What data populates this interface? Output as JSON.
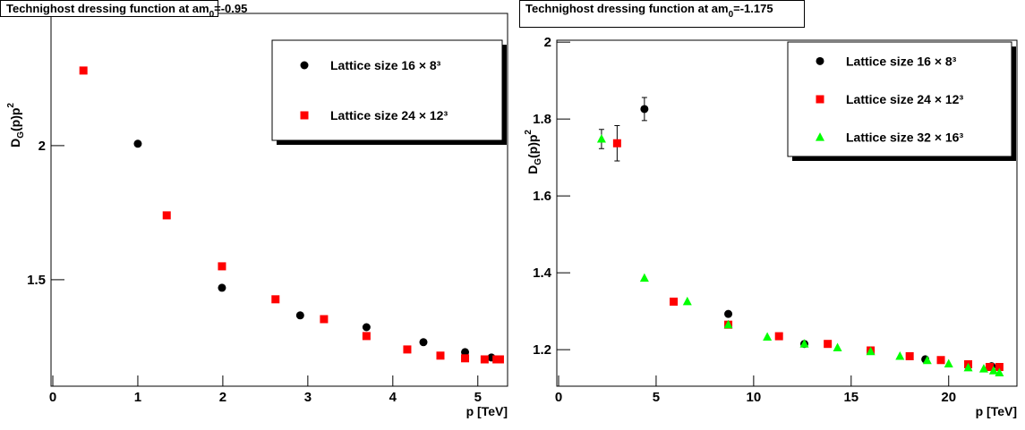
{
  "chart_data": [
    {
      "type": "scatter",
      "title": "Technighost dressing function at am",
      "title_sub": "0",
      "title_end": "=-0.95",
      "ylabel": [
        "D",
        "G",
        "(p)p",
        "2"
      ],
      "xlabel": "p [TeV]",
      "xlim": [
        0,
        5.35
      ],
      "ylim": [
        1.103,
        2.493
      ],
      "xticks": [
        0,
        1,
        2,
        3,
        4,
        5
      ],
      "yticks": [
        1.5,
        2
      ],
      "legend": "upper right",
      "series": [
        {
          "name": "Lattice size 16 × 8³",
          "color": "#000000",
          "marker": "circle",
          "x": [
            1.0,
            1.99,
            2.91,
            3.69,
            4.36,
            4.85,
            5.16
          ],
          "y": [
            2.007,
            1.47,
            1.367,
            1.323,
            1.267,
            1.23,
            1.21
          ]
        },
        {
          "name": "Lattice size 24 × 12³",
          "color": "#ff0000",
          "marker": "square",
          "x": [
            0.36,
            1.34,
            1.99,
            2.62,
            3.19,
            3.69,
            4.17,
            4.56,
            4.85,
            5.08,
            5.22,
            5.26
          ],
          "y": [
            2.28,
            1.74,
            1.55,
            1.427,
            1.353,
            1.29,
            1.24,
            1.217,
            1.207,
            1.203,
            1.203,
            1.203
          ]
        }
      ]
    },
    {
      "type": "scatter",
      "title": "Technighost dressing function at am",
      "title_sub": "0",
      "title_end": "=-1.175",
      "ylabel": [
        "D",
        "G",
        "(p)p",
        "2"
      ],
      "xlabel": "p [TeV]",
      "xlim": [
        0,
        23.5
      ],
      "ylim": [
        1.105,
        2.005
      ],
      "xticks": [
        0,
        5,
        10,
        15,
        20
      ],
      "yticks": [
        1.2,
        1.4,
        1.6,
        1.8,
        2
      ],
      "legend": "upper right",
      "series": [
        {
          "name": "Lattice size 16 × 8³",
          "color": "#000000",
          "marker": "circle",
          "x": [
            4.4,
            8.7,
            12.6,
            16.0,
            18.8,
            22.2
          ],
          "y": [
            1.826,
            1.293,
            1.215,
            1.198,
            1.175,
            1.157
          ],
          "err": [
            0.03,
            null,
            null,
            null,
            null,
            null
          ]
        },
        {
          "name": "Lattice size 24 × 12³",
          "color": "#ff0000",
          "marker": "square",
          "x": [
            3.0,
            5.9,
            8.7,
            11.3,
            13.8,
            16.0,
            18.0,
            19.6,
            21.0,
            22.1,
            22.6
          ],
          "y": [
            1.737,
            1.325,
            1.265,
            1.235,
            1.215,
            1.198,
            1.183,
            1.173,
            1.162,
            1.155,
            1.155
          ],
          "err": [
            0.046,
            null,
            null,
            null,
            null,
            null,
            null,
            null,
            null,
            null,
            null
          ]
        },
        {
          "name": "Lattice size 32 × 16³",
          "color": "#00ff00",
          "marker": "triangle",
          "x": [
            2.2,
            4.4,
            6.6,
            8.7,
            10.7,
            12.6,
            14.3,
            16.0,
            17.5,
            18.9,
            20.0,
            21.0,
            21.8,
            22.3,
            22.6
          ],
          "y": [
            1.748,
            1.386,
            1.325,
            1.265,
            1.233,
            1.215,
            1.205,
            1.195,
            1.183,
            1.172,
            1.163,
            1.153,
            1.15,
            1.145,
            1.14
          ],
          "err": [
            0.025,
            null,
            null,
            null,
            null,
            null,
            null,
            null,
            null,
            null,
            null,
            null,
            null,
            null,
            null
          ]
        }
      ]
    }
  ]
}
